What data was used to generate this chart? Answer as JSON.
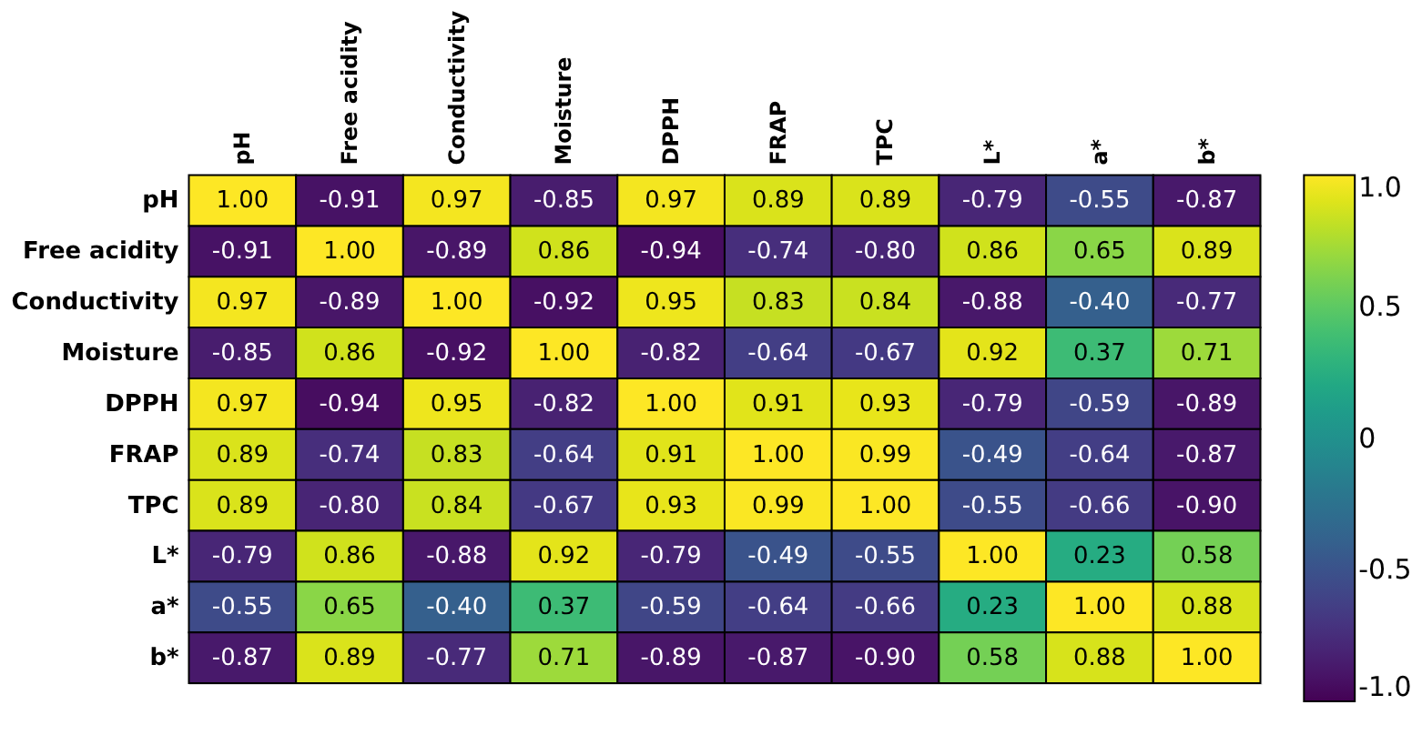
{
  "chart_data": {
    "type": "heatmap",
    "categories": [
      "pH",
      "Free acidity",
      "Conductivity",
      "Moisture",
      "DPPH",
      "FRAP",
      "TPC",
      "L*",
      "a*",
      "b*"
    ],
    "y_categories": [
      "pH",
      "Free acidity",
      "Conductivity",
      "Moisture",
      "DPPH",
      "FRAP",
      "TPC",
      "L*",
      "a*",
      "b*"
    ],
    "cells": [
      [
        1.0,
        -0.91,
        0.97,
        -0.85,
        0.97,
        0.89,
        0.89,
        -0.79,
        -0.55,
        -0.87
      ],
      [
        -0.91,
        1.0,
        -0.89,
        0.86,
        -0.94,
        -0.74,
        -0.8,
        0.86,
        0.65,
        0.89
      ],
      [
        0.97,
        -0.89,
        1.0,
        -0.92,
        0.95,
        0.83,
        0.84,
        -0.88,
        -0.4,
        -0.77
      ],
      [
        -0.85,
        0.86,
        -0.92,
        1.0,
        -0.82,
        -0.64,
        -0.67,
        0.92,
        0.37,
        0.71
      ],
      [
        0.97,
        -0.94,
        0.95,
        -0.82,
        1.0,
        0.91,
        0.93,
        -0.79,
        -0.59,
        -0.89
      ],
      [
        0.89,
        -0.74,
        0.83,
        -0.64,
        0.91,
        1.0,
        0.99,
        -0.49,
        -0.64,
        -0.87
      ],
      [
        0.89,
        -0.8,
        0.84,
        -0.67,
        0.93,
        0.99,
        1.0,
        -0.55,
        -0.66,
        -0.9
      ],
      [
        -0.79,
        0.86,
        -0.88,
        0.92,
        -0.79,
        -0.49,
        -0.55,
        1.0,
        0.23,
        0.58
      ],
      [
        -0.55,
        0.65,
        -0.4,
        0.37,
        -0.59,
        -0.64,
        -0.66,
        0.23,
        1.0,
        0.88
      ],
      [
        -0.87,
        0.89,
        -0.77,
        0.71,
        -0.89,
        -0.87,
        -0.9,
        0.58,
        0.88,
        1.0
      ]
    ],
    "cell_labels": [
      [
        "1.00",
        "-0.91",
        "0.97",
        "-0.85",
        "0.97",
        "0.89",
        "0.89",
        "-0.79",
        "-0.55",
        "-0.87"
      ],
      [
        "-0.91",
        "1.00",
        "-0.89",
        "0.86",
        "-0.94",
        "-0.74",
        "-0.80",
        "0.86",
        "0.65",
        "0.89"
      ],
      [
        "0.97",
        "-0.89",
        "1.00",
        "-0.92",
        "0.95",
        "0.83",
        "0.84",
        "-0.88",
        "-0.40",
        "-0.77"
      ],
      [
        "-0.85",
        "0.86",
        "-0.92",
        "1.00",
        "-0.82",
        "-0.64",
        "-0.67",
        "0.92",
        "0.37",
        "0.71"
      ],
      [
        "0.97",
        "-0.94",
        "0.95",
        "-0.82",
        "1.00",
        "0.91",
        "0.93",
        "-0.79",
        "-0.59",
        "-0.89"
      ],
      [
        "0.89",
        "-0.74",
        "0.83",
        "-0.64",
        "0.91",
        "1.00",
        "0.99",
        "-0.49",
        "-0.64",
        "-0.87"
      ],
      [
        "0.89",
        "-0.80",
        "0.84",
        "-0.67",
        "0.93",
        "0.99",
        "1.00",
        "-0.55",
        "-0.66",
        "-0.90"
      ],
      [
        "-0.79",
        "0.86",
        "-0.88",
        "0.92",
        "-0.79",
        "-0.49",
        "-0.55",
        "1.00",
        "0.23",
        "0.58"
      ],
      [
        "-0.55",
        "0.65",
        "-0.40",
        "0.37",
        "-0.59",
        "-0.64",
        "-0.66",
        "0.23",
        "1.00",
        "0.88"
      ],
      [
        "-0.87",
        "0.89",
        "-0.77",
        "0.71",
        "-0.89",
        "-0.87",
        "-0.90",
        "0.58",
        "0.88",
        "1.00"
      ]
    ],
    "clim": [
      -1,
      1
    ],
    "cticks": [
      {
        "value": 1,
        "label": "1.0"
      },
      {
        "value": 0.5,
        "label": "0.5"
      },
      0,
      {
        "value": -0.5,
        "label": "-0.5"
      },
      {
        "value": -1,
        "label": "-1.0"
      }
    ]
  }
}
